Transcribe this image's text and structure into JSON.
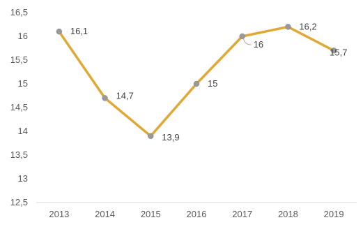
{
  "chart_data": {
    "type": "line",
    "categories": [
      "2013",
      "2014",
      "2015",
      "2016",
      "2017",
      "2018",
      "2019"
    ],
    "values": [
      16.1,
      14.7,
      13.9,
      15,
      16,
      16.2,
      15.7
    ],
    "data_labels": [
      "16,1",
      "14,7",
      "13,9",
      "15",
      "16",
      "16,2",
      "15,7"
    ],
    "y_ticks": [
      12.5,
      13,
      13.5,
      14,
      14.5,
      15,
      15.5,
      16,
      16.5
    ],
    "y_tick_labels": [
      "12,5",
      "13",
      "13,5",
      "14",
      "14,5",
      "15",
      "15,5",
      "16",
      "16,5"
    ],
    "ylim": [
      12.5,
      16.5
    ],
    "grid": false,
    "title": "",
    "xlabel": "",
    "ylabel": "",
    "colors": {
      "line": "#E0A835",
      "marker": "#999999",
      "axis": "#D9D9D9"
    }
  }
}
